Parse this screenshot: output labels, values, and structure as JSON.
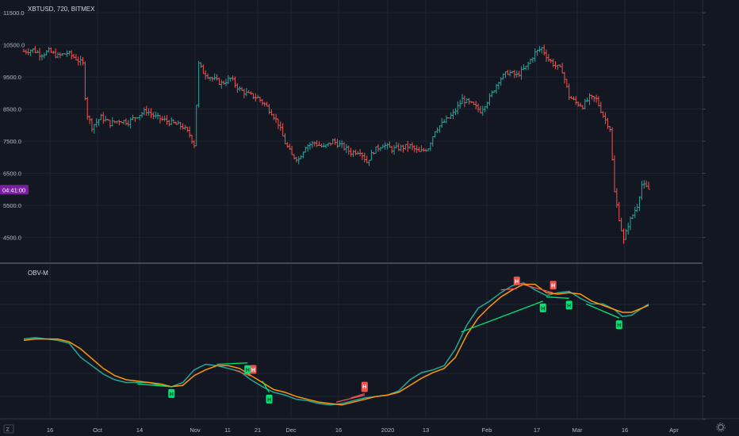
{
  "header": {
    "symbol_title": "XBTUSD, 720, BITMEX",
    "indicator_title": "OBV-M"
  },
  "price_scale": {
    "ticks": [
      "11500.0",
      "10500.0",
      "9500.0",
      "8500.0",
      "7500.0",
      "6500.0",
      "5500.0",
      "4500.0"
    ],
    "last_price_label": "04:41:00",
    "last_price_value": 5990,
    "last_price_color": "#7b1fa2"
  },
  "time_axis": {
    "labels": [
      "16",
      "Oct",
      "14",
      "Nov",
      "11",
      "21",
      "Dec",
      "16",
      "2020",
      "13",
      "Feb",
      "17",
      "Mar",
      "16",
      "Apr"
    ]
  },
  "colors": {
    "background": "#131722",
    "grid": "#1f2433",
    "up": "#26a69a",
    "down": "#ef5350",
    "obv_line": "#26a69a",
    "obv_ma": "#ff9800",
    "divergence_bull": "#00e676",
    "divergence_bear": "#ef5350"
  },
  "chart_data": [
    {
      "type": "ohlc",
      "title": "XBTUSD, 720, BITMEX",
      "ylim": [
        3700,
        11900
      ],
      "close_path": [
        [
          0,
          10300
        ],
        [
          8,
          10350
        ],
        [
          15,
          10200
        ],
        [
          22,
          10300
        ],
        [
          30,
          10150
        ],
        [
          38,
          10250
        ],
        [
          45,
          10100
        ],
        [
          52,
          9900
        ],
        [
          55,
          8400
        ],
        [
          60,
          7950
        ],
        [
          68,
          8250
        ],
        [
          76,
          8050
        ],
        [
          84,
          8150
        ],
        [
          92,
          8100
        ],
        [
          100,
          8300
        ],
        [
          108,
          8450
        ],
        [
          116,
          8250
        ],
        [
          124,
          8150
        ],
        [
          132,
          8050
        ],
        [
          140,
          7950
        ],
        [
          146,
          7700
        ],
        [
          150,
          7400
        ],
        [
          154,
          9900
        ],
        [
          158,
          9650
        ],
        [
          166,
          9450
        ],
        [
          174,
          9300
        ],
        [
          182,
          9450
        ],
        [
          190,
          9100
        ],
        [
          198,
          8950
        ],
        [
          206,
          8850
        ],
        [
          212,
          8650
        ],
        [
          218,
          8400
        ],
        [
          224,
          8050
        ],
        [
          230,
          7450
        ],
        [
          236,
          7050
        ],
        [
          242,
          6950
        ],
        [
          248,
          7350
        ],
        [
          256,
          7450
        ],
        [
          264,
          7300
        ],
        [
          272,
          7500
        ],
        [
          280,
          7350
        ],
        [
          288,
          7150
        ],
        [
          296,
          7200
        ],
        [
          302,
          6850
        ],
        [
          308,
          7200
        ],
        [
          316,
          7400
        ],
        [
          324,
          7250
        ],
        [
          332,
          7300
        ],
        [
          340,
          7350
        ],
        [
          348,
          7150
        ],
        [
          356,
          7300
        ],
        [
          362,
          7850
        ],
        [
          370,
          8100
        ],
        [
          378,
          8350
        ],
        [
          386,
          8800
        ],
        [
          394,
          8650
        ],
        [
          402,
          8450
        ],
        [
          410,
          8850
        ],
        [
          418,
          9400
        ],
        [
          426,
          9650
        ],
        [
          434,
          9550
        ],
        [
          442,
          9800
        ],
        [
          450,
          10250
        ],
        [
          456,
          10400
        ],
        [
          462,
          10050
        ],
        [
          468,
          9850
        ],
        [
          474,
          9700
        ],
        [
          480,
          8900
        ],
        [
          486,
          8700
        ],
        [
          492,
          8600
        ],
        [
          498,
          8850
        ],
        [
          504,
          8800
        ],
        [
          510,
          8300
        ],
        [
          516,
          7900
        ],
        [
          520,
          5900
        ],
        [
          524,
          5100
        ],
        [
          528,
          4400
        ],
        [
          532,
          4900
        ],
        [
          536,
          5200
        ],
        [
          540,
          5500
        ],
        [
          544,
          6150
        ],
        [
          550,
          6000
        ]
      ],
      "last_close": 5990
    },
    {
      "type": "line",
      "title": "OBV-M",
      "ylim": [
        0,
        100
      ],
      "series": [
        {
          "role": "obv",
          "values": [
            [
              0,
              55
            ],
            [
              10,
              56
            ],
            [
              20,
              55
            ],
            [
              30,
              54
            ],
            [
              40,
              52
            ],
            [
              50,
              42
            ],
            [
              60,
              36
            ],
            [
              70,
              30
            ],
            [
              80,
              26
            ],
            [
              90,
              24
            ],
            [
              100,
              24
            ],
            [
              110,
              24
            ],
            [
              120,
              22
            ],
            [
              130,
              21
            ],
            [
              140,
              24
            ],
            [
              150,
              33
            ],
            [
              160,
              37
            ],
            [
              170,
              36
            ],
            [
              180,
              34
            ],
            [
              190,
              32
            ],
            [
              200,
              26
            ],
            [
              210,
              21
            ],
            [
              220,
              17
            ],
            [
              230,
              15
            ],
            [
              240,
              12
            ],
            [
              250,
              11
            ],
            [
              260,
              9
            ],
            [
              270,
              8
            ],
            [
              280,
              9
            ],
            [
              290,
              11
            ],
            [
              300,
              13
            ],
            [
              310,
              14
            ],
            [
              320,
              15
            ],
            [
              330,
              18
            ],
            [
              340,
              26
            ],
            [
              350,
              31
            ],
            [
              360,
              33
            ],
            [
              370,
              36
            ],
            [
              380,
              48
            ],
            [
              390,
              65
            ],
            [
              400,
              77
            ],
            [
              410,
              82
            ],
            [
              420,
              88
            ],
            [
              430,
              93
            ],
            [
              440,
              95
            ],
            [
              450,
              90
            ],
            [
              460,
              86
            ],
            [
              470,
              88
            ],
            [
              480,
              89
            ],
            [
              490,
              84
            ],
            [
              500,
              80
            ],
            [
              510,
              80
            ],
            [
              520,
              76
            ],
            [
              527,
              71
            ],
            [
              535,
              72
            ],
            [
              550,
              80
            ]
          ]
        },
        {
          "role": "ma",
          "values": [
            [
              0,
              54
            ],
            [
              10,
              55
            ],
            [
              20,
              55
            ],
            [
              30,
              55
            ],
            [
              40,
              53
            ],
            [
              50,
              48
            ],
            [
              60,
              41
            ],
            [
              70,
              34
            ],
            [
              80,
              29
            ],
            [
              90,
              26
            ],
            [
              100,
              25
            ],
            [
              110,
              24
            ],
            [
              120,
              23
            ],
            [
              130,
              21
            ],
            [
              140,
              22
            ],
            [
              150,
              29
            ],
            [
              160,
              33
            ],
            [
              170,
              36
            ],
            [
              180,
              36
            ],
            [
              190,
              34
            ],
            [
              200,
              29
            ],
            [
              210,
              24
            ],
            [
              220,
              19
            ],
            [
              230,
              17
            ],
            [
              240,
              14
            ],
            [
              250,
              12
            ],
            [
              260,
              10
            ],
            [
              270,
              9
            ],
            [
              280,
              8
            ],
            [
              290,
              10
            ],
            [
              300,
              12
            ],
            [
              310,
              14
            ],
            [
              320,
              15
            ],
            [
              330,
              17
            ],
            [
              340,
              22
            ],
            [
              350,
              27
            ],
            [
              360,
              31
            ],
            [
              370,
              34
            ],
            [
              380,
              42
            ],
            [
              390,
              58
            ],
            [
              400,
              70
            ],
            [
              410,
              78
            ],
            [
              420,
              85
            ],
            [
              430,
              90
            ],
            [
              440,
              94
            ],
            [
              450,
              94
            ],
            [
              460,
              88
            ],
            [
              470,
              87
            ],
            [
              480,
              88
            ],
            [
              490,
              87
            ],
            [
              500,
              82
            ],
            [
              510,
              79
            ],
            [
              520,
              76
            ],
            [
              527,
              74
            ],
            [
              535,
              74
            ],
            [
              550,
              79
            ]
          ]
        }
      ],
      "divergences": [
        {
          "kind": "bull",
          "from": [
            100,
            23
          ],
          "to": [
            130,
            21
          ],
          "tag": "H"
        },
        {
          "kind": "bear",
          "from": [
            185,
            33
          ],
          "to": [
            202,
            28
          ],
          "tag": "H"
        },
        {
          "kind": "bull",
          "from": [
            170,
            37
          ],
          "to": [
            197,
            38
          ],
          "tag": "H"
        },
        {
          "kind": "bull",
          "from": [
            210,
            25
          ],
          "to": [
            216,
            17
          ],
          "tag": "H"
        },
        {
          "kind": "bear",
          "from": [
            275,
            10
          ],
          "to": [
            300,
            15
          ],
          "tag": "H"
        },
        {
          "kind": "bear",
          "from": [
            288,
            13
          ],
          "to": [
            300,
            16
          ],
          "tag": "H"
        },
        {
          "kind": "bear",
          "from": [
            420,
            90
          ],
          "to": [
            434,
            91
          ],
          "tag": "H"
        },
        {
          "kind": "bear",
          "from": [
            434,
            95
          ],
          "to": [
            466,
            88
          ],
          "tag": "H"
        },
        {
          "kind": "bull",
          "from": [
            385,
            60
          ],
          "to": [
            457,
            82
          ],
          "tag": "H"
        },
        {
          "kind": "bull",
          "from": [
            460,
            85
          ],
          "to": [
            480,
            84
          ],
          "tag": "H"
        },
        {
          "kind": "bull",
          "from": [
            495,
            80
          ],
          "to": [
            524,
            70
          ],
          "tag": "H"
        }
      ]
    }
  ]
}
